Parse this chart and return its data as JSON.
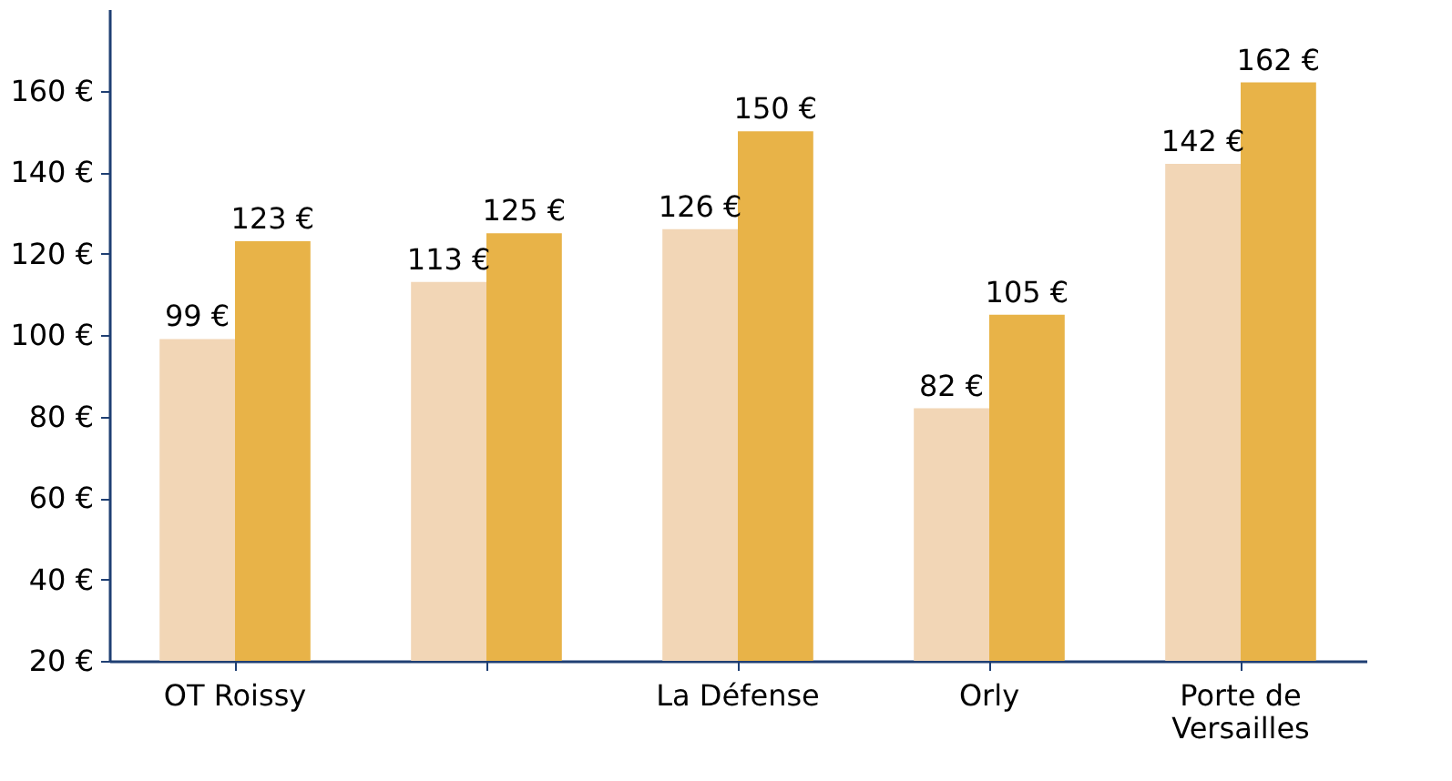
{
  "chart_data": {
    "type": "bar",
    "categories": [
      "OT Roissy",
      null,
      "La Défense",
      "Orly",
      "Porte de Versailles"
    ],
    "series": [
      {
        "color": "#f2d6b6",
        "values": [
          99,
          113,
          126,
          82,
          142
        ],
        "value_labels": [
          "99 €",
          "113 €",
          "126 €",
          "82 €",
          "142 €"
        ]
      },
      {
        "color": "#e8b348",
        "values": [
          123,
          125,
          150,
          105,
          162
        ],
        "value_labels": [
          "123 €",
          "125 €",
          "150 €",
          "105 €",
          "162 €"
        ]
      }
    ],
    "ylim": [
      20,
      180
    ],
    "yticks": [
      {
        "value": 20,
        "label": "20 €"
      },
      {
        "value": 40,
        "label": "40 €"
      },
      {
        "value": 60,
        "label": "60 €"
      },
      {
        "value": 80,
        "label": "80 €"
      },
      {
        "value": 100,
        "label": "100 €"
      },
      {
        "value": 120,
        "label": "120 €"
      },
      {
        "value": 140,
        "label": "140 €"
      },
      {
        "value": 160,
        "label": "160 €"
      }
    ],
    "grid": false,
    "legend": false
  }
}
